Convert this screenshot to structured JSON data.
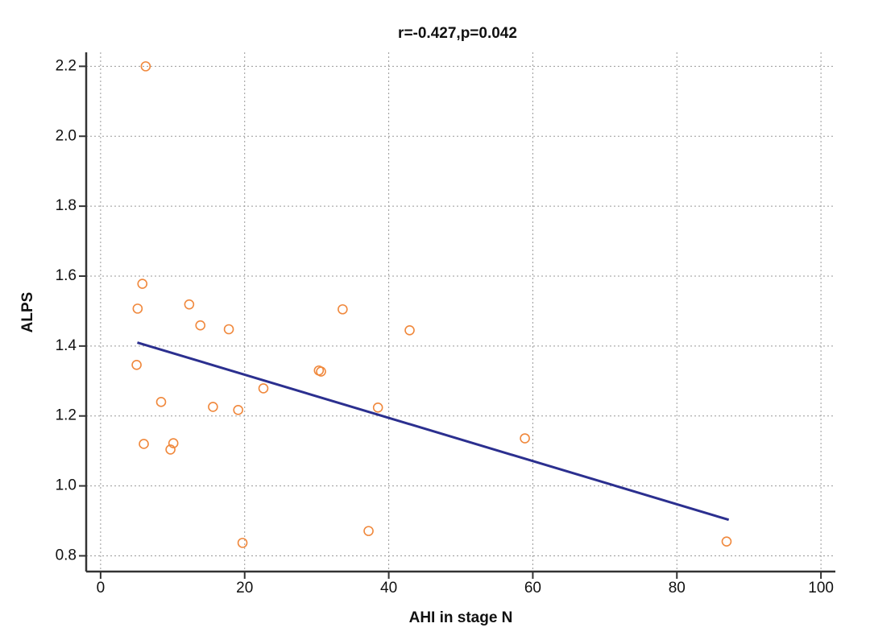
{
  "chart_data": {
    "type": "scatter",
    "title": "r=-0.427,p=0.042",
    "x_label": "AHI in stage N",
    "y_label": "ALPS",
    "series": [
      {
        "name": "ALPS",
        "color": "#f0883c",
        "x": [
          6.26,
          5.8,
          5.14,
          12.3,
          13.85,
          17.8,
          33.6,
          42.9,
          5.0,
          30.3,
          30.6,
          22.6,
          8.4,
          15.6,
          19.1,
          38.5,
          6.0,
          10.1,
          9.7,
          58.9,
          37.2,
          19.7,
          86.9
        ],
        "values": [
          2.2,
          1.578,
          1.507,
          1.519,
          1.459,
          1.448,
          1.505,
          1.445,
          1.346,
          1.33,
          1.327,
          1.279,
          1.24,
          1.226,
          1.217,
          1.224,
          1.12,
          1.122,
          1.104,
          1.136,
          0.871,
          0.837,
          0.841
        ]
      }
    ],
    "trendline": {
      "color": "#2b2f8f",
      "x": [
        5.1,
        87.2
      ],
      "values": [
        1.41,
        0.903
      ]
    },
    "xlim": [
      -2,
      102
    ],
    "ylim": [
      0.755,
      2.24
    ],
    "xticks": [
      0,
      20,
      40,
      60,
      80,
      100
    ],
    "yticks": [
      0.8,
      {
        "value": 1.0,
        "label": "1.0"
      },
      1.2,
      1.4,
      1.6,
      1.8,
      {
        "value": 2.0,
        "label": "2.0"
      },
      2.2
    ],
    "grid": true
  }
}
